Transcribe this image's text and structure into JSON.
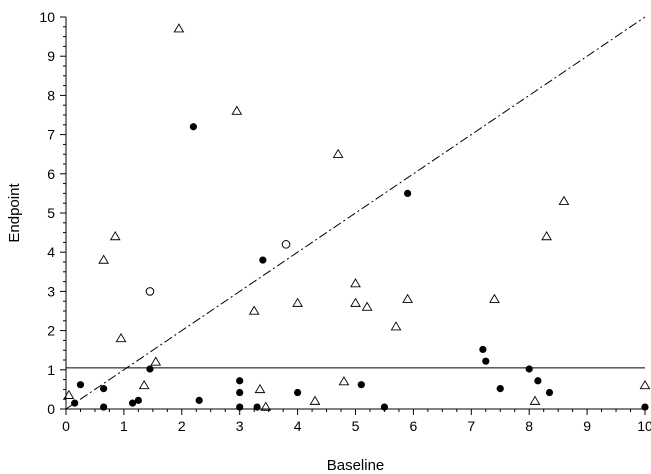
{
  "chart_data": {
    "type": "scatter",
    "title": "",
    "xlabel": "Baseline",
    "ylabel": "Endpoint",
    "xlim": [
      0,
      10
    ],
    "ylim": [
      0,
      10
    ],
    "xticks": [
      0,
      1,
      2,
      3,
      4,
      5,
      6,
      7,
      8,
      9,
      10
    ],
    "yticks": [
      0,
      1,
      2,
      3,
      4,
      5,
      6,
      7,
      8,
      9,
      10
    ],
    "grid": false,
    "legend": "none",
    "reference_lines": [
      {
        "kind": "horizontal",
        "y": 1.05,
        "style": "solid"
      },
      {
        "kind": "diagonal",
        "from": [
          0,
          0
        ],
        "to": [
          10,
          10
        ],
        "style": "dash-dot"
      }
    ],
    "series": [
      {
        "marker": "filled-circle",
        "x": [
          0.15,
          0.25,
          0.65,
          0.65,
          1.15,
          1.25,
          1.45,
          2.2,
          2.3,
          3.0,
          3.0,
          3.0,
          3.3,
          3.4,
          4.0,
          5.1,
          5.5,
          5.9,
          7.2,
          7.25,
          7.5,
          8.0,
          8.15,
          8.35,
          10.0
        ],
        "y": [
          0.15,
          0.62,
          0.52,
          0.05,
          0.15,
          0.22,
          1.02,
          7.2,
          0.22,
          0.72,
          0.42,
          0.05,
          0.05,
          3.8,
          0.42,
          0.62,
          0.05,
          5.5,
          1.52,
          1.22,
          0.52,
          1.02,
          0.72,
          0.42,
          0.05
        ]
      },
      {
        "marker": "open-triangle",
        "x": [
          0.05,
          0.65,
          0.85,
          0.95,
          1.35,
          1.55,
          1.95,
          2.95,
          3.25,
          3.35,
          3.45,
          4.0,
          4.3,
          4.7,
          4.8,
          5.0,
          5.0,
          5.2,
          5.7,
          5.9,
          7.4,
          8.1,
          8.3,
          8.6,
          10.0
        ],
        "y": [
          0.35,
          3.8,
          4.4,
          1.8,
          0.6,
          1.2,
          9.7,
          7.6,
          2.5,
          0.5,
          0.05,
          2.7,
          0.2,
          6.5,
          0.7,
          3.2,
          2.7,
          2.6,
          2.1,
          2.8,
          2.8,
          0.2,
          4.4,
          5.3,
          0.6
        ]
      },
      {
        "marker": "open-circle",
        "x": [
          1.45,
          3.8
        ],
        "y": [
          3.0,
          4.2
        ]
      }
    ]
  }
}
